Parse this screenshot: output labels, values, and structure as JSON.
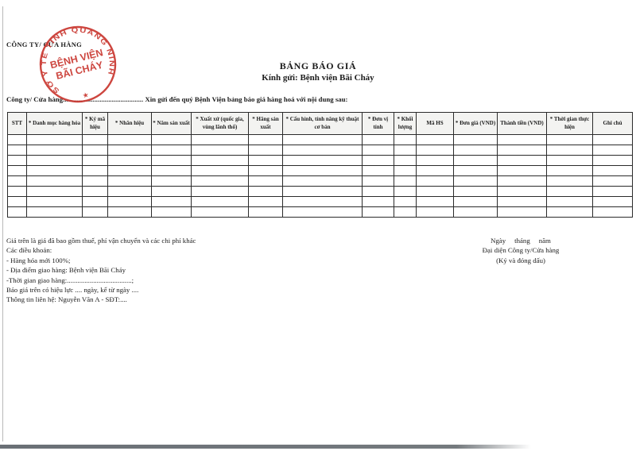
{
  "document": {
    "company_label": "CÔNG TY/ CỬA HÀNG",
    "title": "BẢNG BÁO GIÁ",
    "subtitle": "Kính gửi: Bệnh viện Bãi Cháy",
    "intro_line": "Công ty/ Cửa hàng.............................................. Xin gửi đến quý Bệnh Viện bảng báo giá hàng hoá với nội dung sau:"
  },
  "stamp": {
    "ring_text": "SỞ Y TẾ TỈNH QUẢNG NINH",
    "center_line1": "BỆNH VIỆN",
    "center_line2": "BÃI CHÁY",
    "star": "★",
    "color": "#c8322b"
  },
  "table": {
    "columns": [
      "STT",
      "* Danh mục hàng hóa",
      "* Ký mã hiệu",
      "* Nhãn hiệu",
      "* Năm sản xuất",
      "* Xuất xứ (quốc gia, vùng lãnh thổ)",
      "* Hãng sản xuất",
      "* Cấu hình, tính năng kỹ thuật cơ bản",
      "* Đơn vị tính",
      "* Khối lượng",
      "Mã HS",
      "* Đơn giá (VND)",
      "Thành tiền (VND)",
      "* Thời gian thực hiện",
      "Ghi chú"
    ],
    "empty_rows": 8
  },
  "footer": {
    "notes": [
      "Giá trên là giá đã bao gồm thuế, phí vận chuyển và các chi phí khác",
      "Các điều khoản:",
      "- Hàng hóa mới 100%;",
      "- Địa điểm giao hàng: Bệnh viện Bãi Cháy",
      "-Thời gian giao hàng:.....................................;",
      "Báo giá trên có hiệu lực .... ngày, kể từ ngày ....",
      "Thông tin liên hệ: Nguyễn Văn A - SĐT:...."
    ],
    "signature": {
      "date_line": "Ngày     tháng     năm",
      "representative": "Đại diện Công ty/Cửa hàng",
      "note": "(Ký và đóng dấu)"
    }
  }
}
